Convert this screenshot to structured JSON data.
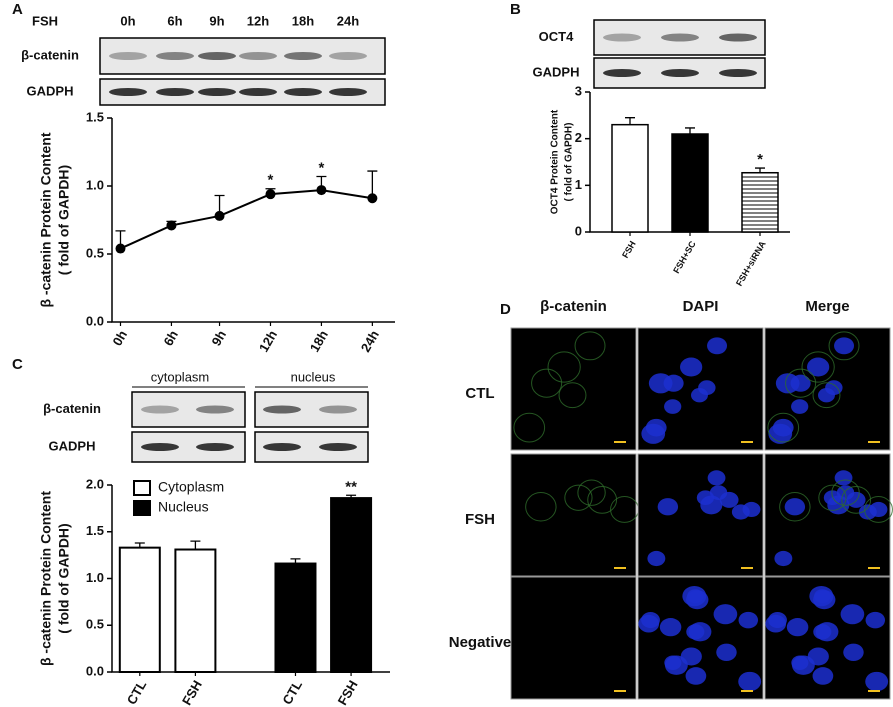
{
  "chart_data": [
    {
      "type": "line",
      "panel": "A",
      "blot": {
        "header": "FSH",
        "lanes": [
          "0h",
          "6h",
          "9h",
          "12h",
          "18h",
          "24h"
        ],
        "rows": [
          "β-catenin",
          "GADPH"
        ]
      },
      "y_label": [
        "β -catenin Protein Content",
        "( fold of GAPDH)"
      ],
      "categories": [
        "0h",
        "6h",
        "9h",
        "12h",
        "18h",
        "24h"
      ],
      "values": [
        0.54,
        0.71,
        0.78,
        0.94,
        0.97,
        0.91
      ],
      "errors": [
        0.13,
        0.03,
        0.15,
        0.04,
        0.1,
        0.2
      ],
      "annotations": [
        null,
        null,
        null,
        "*",
        "*",
        null
      ],
      "color": "#000000",
      "ylim": [
        0,
        1.5
      ],
      "yticks": [
        {
          "value": 0,
          "label": "0.0"
        },
        0.5,
        {
          "value": 1,
          "label": "1.0"
        },
        1.5
      ]
    },
    {
      "type": "bar",
      "panel": "B",
      "blot": {
        "rows": [
          "OCT4",
          "GADPH"
        ]
      },
      "y_label": [
        "OCT4 Protein Content",
        "( fold of GAPDH)"
      ],
      "categories": [
        "FSH",
        "FSH+SC",
        "FSH+siRNA"
      ],
      "values": [
        2.3,
        2.1,
        1.27
      ],
      "errors": [
        0.15,
        0.13,
        0.1
      ],
      "annotations": [
        null,
        null,
        "*"
      ],
      "colors": [
        "#ffffff",
        "#000000",
        "#ffffff"
      ],
      "hatches": [
        null,
        null,
        "horizontal"
      ],
      "ylim": [
        0,
        3
      ],
      "yticks": [
        0,
        1,
        2,
        3
      ]
    },
    {
      "type": "grouped-bar",
      "panel": "C",
      "blot": {
        "columns": [
          "cytoplasm",
          "nucleus"
        ],
        "rows": [
          "β-catenin",
          "GADPH"
        ]
      },
      "y_label": [
        "β -catenin Protein Content",
        "( fold of GAPDH)"
      ],
      "categories": [
        "CTL",
        "FSH",
        "CTL",
        "FSH"
      ],
      "series": [
        {
          "name": "Cytoplasm",
          "color": "#ffffff",
          "values": [
            1.33,
            1.31,
            null,
            null
          ],
          "errors": [
            0.05,
            0.09,
            null,
            null
          ],
          "annotations": [
            null,
            null,
            null,
            null
          ]
        },
        {
          "name": "Nucleus",
          "color": "#000000",
          "values": [
            null,
            null,
            1.16,
            1.86
          ],
          "errors": [
            null,
            null,
            0.05,
            0.03
          ],
          "annotations": [
            null,
            null,
            null,
            "**"
          ]
        }
      ],
      "ylim": [
        0,
        2
      ],
      "yticks": [
        {
          "value": 0,
          "label": "0.0"
        },
        0.5,
        {
          "value": 1,
          "label": "1.0"
        },
        1.5,
        {
          "value": 2,
          "label": "2.0"
        }
      ]
    }
  ],
  "panel_d": {
    "panel": "D",
    "columns": [
      "β-catenin",
      "DAPI",
      "Merge"
    ],
    "rows": [
      "CTL",
      "FSH",
      "Negative"
    ]
  }
}
